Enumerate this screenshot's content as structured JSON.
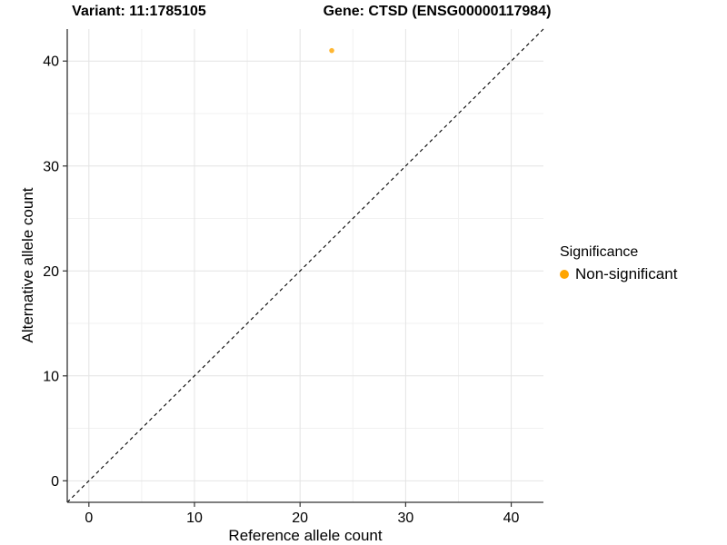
{
  "chart_data": {
    "type": "scatter",
    "title_left": "Variant: 11:1785105",
    "title_right": "Gene: CTSD (ENSG00000117984)",
    "xlabel": "Reference allele count",
    "ylabel": "Alternative allele count",
    "xlim": [
      -2.05,
      43.05
    ],
    "ylim": [
      -2.05,
      43.05
    ],
    "x_ticks": [
      0,
      10,
      20,
      30,
      40
    ],
    "y_ticks": [
      0,
      10,
      20,
      30,
      40
    ],
    "x_minor_ticks": [
      5,
      15,
      25,
      35
    ],
    "y_minor_ticks": [
      5,
      15,
      25,
      35
    ],
    "grid": "major+minor",
    "points": [
      {
        "x": 23,
        "y": 41,
        "series": "Non-significant"
      }
    ],
    "reference_line": {
      "kind": "identity",
      "style": "dashed",
      "color": "#000000"
    },
    "series": [
      {
        "name": "Non-significant",
        "color": "#FFA500"
      }
    ],
    "legend": {
      "title": "Significance",
      "position": "right",
      "entries": [
        {
          "label": "Non-significant",
          "color": "#FFA500"
        }
      ]
    }
  },
  "colors": {
    "background": "#FFFFFF",
    "point": "#FFA500",
    "grid_major": "#E4E4E4",
    "grid_minor": "#F1F1F1",
    "axis_line": "#333333",
    "tick": "#333333",
    "text": "#000000"
  }
}
